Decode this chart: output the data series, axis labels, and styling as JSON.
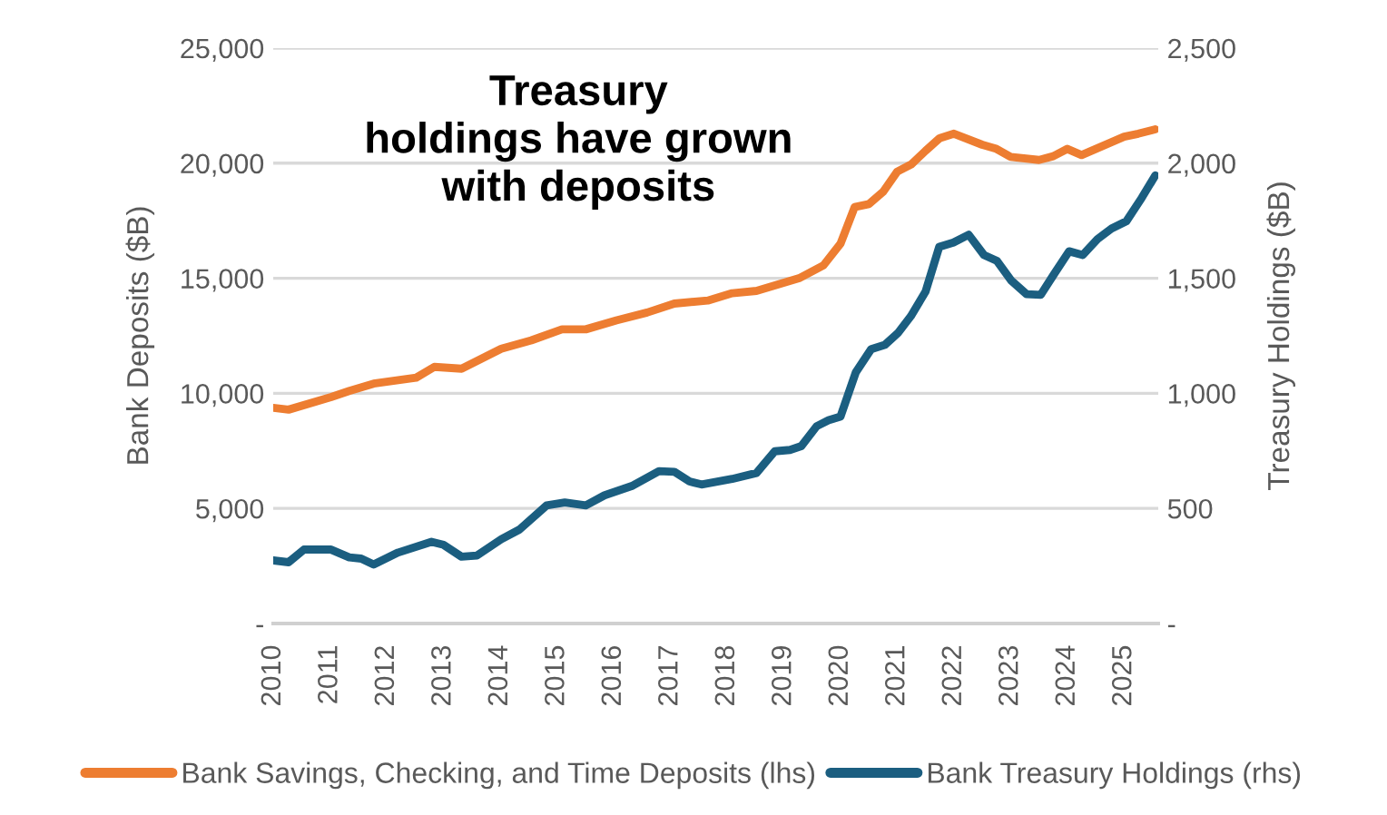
{
  "chart_data": {
    "type": "line",
    "title": "Treasury\nholdings have grown\nwith deposits",
    "ylabel": "Bank Deposits ($B)",
    "y2label": "Treasury Holdings ($B)",
    "xlim": [
      2010,
      2025.6
    ],
    "xticks": [
      2010,
      2011,
      2012,
      2013,
      2014,
      2015,
      2016,
      2017,
      2018,
      2019,
      2020,
      2021,
      2022,
      2023,
      2024,
      2025
    ],
    "ylim": [
      0,
      25000
    ],
    "yticks": [
      {
        "value": 0,
        "label": "-"
      },
      {
        "value": 5000,
        "label": "5,000"
      },
      {
        "value": 10000,
        "label": "10,000"
      },
      {
        "value": 15000,
        "label": "15,000"
      },
      {
        "value": 20000,
        "label": "20,000"
      },
      {
        "value": 25000,
        "label": "25,000"
      }
    ],
    "y2lim": [
      0,
      2500
    ],
    "y2ticks": [
      {
        "value": 0,
        "label": "-"
      },
      {
        "value": 500,
        "label": "500"
      },
      {
        "value": 1000,
        "label": "1,000"
      },
      {
        "value": 1500,
        "label": "1,500"
      },
      {
        "value": 2000,
        "label": "2,000"
      },
      {
        "value": 2500,
        "label": "2,500"
      }
    ],
    "grid": "y",
    "legend": "bottom",
    "line_style": "solid",
    "marker": "none",
    "series": [
      {
        "name": "Bank Savings, Checking, and Time Deposits (lhs)",
        "color": "#ed7d31",
        "x": [
          2010.0,
          2010.27,
          2011.02,
          2011.34,
          2011.77,
          2012.52,
          2012.84,
          2013.32,
          2014.02,
          2014.55,
          2015.09,
          2015.51,
          2016.05,
          2016.59,
          2017.07,
          2017.66,
          2018.09,
          2018.52,
          2019.27,
          2019.7,
          2020.0,
          2020.25,
          2020.5,
          2020.75,
          2021.0,
          2021.25,
          2021.5,
          2021.75,
          2022.0,
          2022.5,
          2022.75,
          2023.0,
          2023.5,
          2023.75,
          2024.0,
          2024.25,
          2024.5,
          2024.75,
          2025.0,
          2025.25,
          2025.55
        ],
        "values": [
          9370,
          9290,
          9840,
          10100,
          10420,
          10680,
          11150,
          11070,
          11940,
          12300,
          12780,
          12780,
          13170,
          13510,
          13900,
          14030,
          14350,
          14450,
          15000,
          15560,
          16500,
          18090,
          18220,
          18750,
          19630,
          19950,
          20540,
          21090,
          21280,
          20800,
          20620,
          20270,
          20140,
          20300,
          20620,
          20350,
          20620,
          20880,
          21150,
          21280,
          21470
        ]
      },
      {
        "name": "Bank Treasury Holdings (rhs)",
        "color": "#1b5e80",
        "axis": "y2",
        "x": [
          2010.0,
          2010.27,
          2010.54,
          2011.02,
          2011.34,
          2011.55,
          2011.77,
          2012.2,
          2012.79,
          2013.0,
          2013.32,
          2013.59,
          2014.02,
          2014.34,
          2014.82,
          2015.14,
          2015.51,
          2015.84,
          2016.32,
          2016.8,
          2017.07,
          2017.34,
          2017.55,
          2018.09,
          2018.52,
          2018.84,
          2019.11,
          2019.31,
          2019.58,
          2019.79,
          2020.0,
          2020.27,
          2020.54,
          2020.78,
          2021.02,
          2021.24,
          2021.5,
          2021.74,
          2021.99,
          2022.26,
          2022.53,
          2022.76,
          2023.01,
          2023.28,
          2023.53,
          2023.76,
          2024.03,
          2024.27,
          2024.53,
          2024.78,
          2025.04,
          2025.31,
          2025.55
        ],
        "values": [
          274,
          266,
          321,
          321,
          287,
          282,
          256,
          308,
          355,
          342,
          290,
          295,
          366,
          408,
          513,
          526,
          513,
          557,
          597,
          662,
          659,
          617,
          604,
          628,
          654,
          748,
          754,
          771,
          857,
          883,
          899,
          1091,
          1192,
          1210,
          1264,
          1335,
          1442,
          1636,
          1655,
          1689,
          1601,
          1575,
          1490,
          1431,
          1428,
          1516,
          1617,
          1601,
          1670,
          1716,
          1748,
          1849,
          1947
        ]
      }
    ]
  }
}
